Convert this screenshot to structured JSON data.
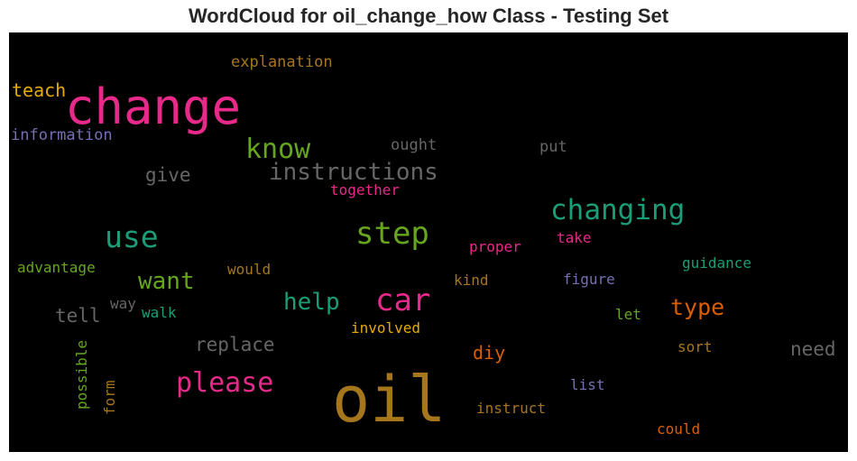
{
  "title": "WordCloud for oil_change_how Class - Testing Set",
  "chart_data": {
    "type": "wordcloud",
    "title": "WordCloud for oil_change_how Class - Testing Set",
    "background": "#000000",
    "colormap": [
      "#e7298a",
      "#1b9e77",
      "#66a61e",
      "#a6761d",
      "#666666",
      "#d95f02",
      "#7570b3",
      "#e6ab02"
    ],
    "words": [
      {
        "text": "oil",
        "color": "#a6761d"
      },
      {
        "text": "change",
        "color": "#e7298a"
      },
      {
        "text": "step",
        "color": "#66a61e"
      },
      {
        "text": "car",
        "color": "#e7298a"
      },
      {
        "text": "use",
        "color": "#1b9e77"
      },
      {
        "text": "changing",
        "color": "#1b9e77"
      },
      {
        "text": "know",
        "color": "#66a61e"
      },
      {
        "text": "please",
        "color": "#e7298a"
      },
      {
        "text": "instructions",
        "color": "#666666"
      },
      {
        "text": "want",
        "color": "#66a61e"
      },
      {
        "text": "help",
        "color": "#1b9e77"
      },
      {
        "text": "type",
        "color": "#d95f02"
      },
      {
        "text": "replace",
        "color": "#666666"
      },
      {
        "text": "tell",
        "color": "#666666"
      },
      {
        "text": "need",
        "color": "#666666"
      },
      {
        "text": "give",
        "color": "#666666"
      },
      {
        "text": "teach",
        "color": "#e6ab02"
      },
      {
        "text": "diy",
        "color": "#d95f02"
      },
      {
        "text": "explanation",
        "color": "#a6761d"
      },
      {
        "text": "information",
        "color": "#7570b3"
      },
      {
        "text": "ought",
        "color": "#666666"
      },
      {
        "text": "put",
        "color": "#666666"
      },
      {
        "text": "together",
        "color": "#e7298a"
      },
      {
        "text": "proper",
        "color": "#e7298a"
      },
      {
        "text": "take",
        "color": "#e7298a"
      },
      {
        "text": "advantage",
        "color": "#66a61e"
      },
      {
        "text": "would",
        "color": "#a6761d"
      },
      {
        "text": "guidance",
        "color": "#1b9e77"
      },
      {
        "text": "kind",
        "color": "#a6761d"
      },
      {
        "text": "figure",
        "color": "#7570b3"
      },
      {
        "text": "way",
        "color": "#666666"
      },
      {
        "text": "walk",
        "color": "#1b9e77"
      },
      {
        "text": "let",
        "color": "#66a61e"
      },
      {
        "text": "involved",
        "color": "#e6ab02"
      },
      {
        "text": "sort",
        "color": "#a6761d"
      },
      {
        "text": "possible",
        "color": "#66a61e"
      },
      {
        "text": "form",
        "color": "#a6761d"
      },
      {
        "text": "list",
        "color": "#7570b3"
      },
      {
        "text": "instruct",
        "color": "#a6761d"
      },
      {
        "text": "could",
        "color": "#d95f02"
      }
    ]
  }
}
